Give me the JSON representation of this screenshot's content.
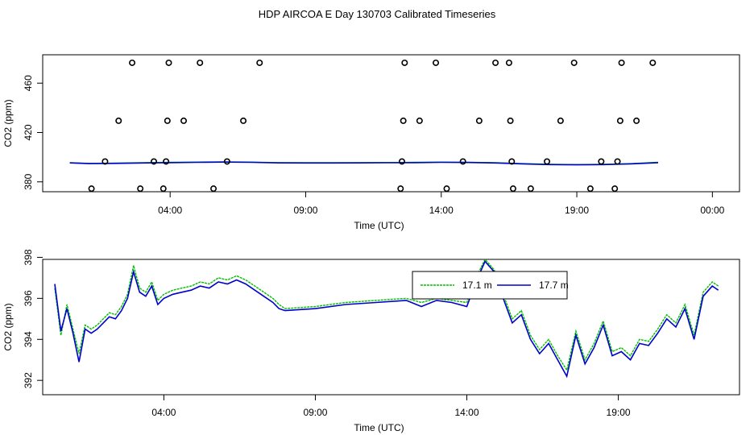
{
  "page": {
    "title": "HDP AIRCOA E  Day 130703  Calibrated Timeseries"
  },
  "colors": {
    "green": "#00c000",
    "blue": "#0000cc",
    "axis": "#000000"
  },
  "chart_data": [
    {
      "type": "scatter",
      "title": "",
      "xlabel": "Time (UTC)",
      "ylabel": "CO2 (ppm)",
      "xlim": [
        -0.7,
        25.0
      ],
      "ylim": [
        372,
        483
      ],
      "x_ticks": [
        {
          "value": 4,
          "label": "04:00"
        },
        {
          "value": 9,
          "label": "09:00"
        },
        {
          "value": 14,
          "label": "14:00"
        },
        {
          "value": 19,
          "label": "19:00"
        },
        {
          "value": 24,
          "label": "00:00"
        }
      ],
      "y_ticks": [
        {
          "value": 380,
          "label": "380"
        },
        {
          "value": 420,
          "label": "420"
        },
        {
          "value": 460,
          "label": "460"
        }
      ],
      "grid": false,
      "scatter_points": [
        [
          1.1,
          374.5
        ],
        [
          1.6,
          396.5
        ],
        [
          2.1,
          429.5
        ],
        [
          2.6,
          476.5
        ],
        [
          2.9,
          374.5
        ],
        [
          3.4,
          396.5
        ],
        [
          3.75,
          374.5
        ],
        [
          3.85,
          396.5
        ],
        [
          3.9,
          429.5
        ],
        [
          3.95,
          476.5
        ],
        [
          4.5,
          429.5
        ],
        [
          5.1,
          476.5
        ],
        [
          5.6,
          374.5
        ],
        [
          6.1,
          396.5
        ],
        [
          6.7,
          429.5
        ],
        [
          7.3,
          476.5
        ],
        [
          12.5,
          374.5
        ],
        [
          12.55,
          396.5
        ],
        [
          12.6,
          429.5
        ],
        [
          12.65,
          476.5
        ],
        [
          13.2,
          429.5
        ],
        [
          13.8,
          476.5
        ],
        [
          14.2,
          374.5
        ],
        [
          14.8,
          396.5
        ],
        [
          15.4,
          429.5
        ],
        [
          16.0,
          476.5
        ],
        [
          16.5,
          476.5
        ],
        [
          16.55,
          429.5
        ],
        [
          16.6,
          396.5
        ],
        [
          16.65,
          374.5
        ],
        [
          17.3,
          374.5
        ],
        [
          17.9,
          396.5
        ],
        [
          18.4,
          429.5
        ],
        [
          18.9,
          476.5
        ],
        [
          19.5,
          374.5
        ],
        [
          19.9,
          396.5
        ],
        [
          20.4,
          374.5
        ],
        [
          20.5,
          396.5
        ],
        [
          20.6,
          429.5
        ],
        [
          20.65,
          476.5
        ],
        [
          21.2,
          429.5
        ],
        [
          21.8,
          476.5
        ]
      ],
      "series": [
        {
          "name": "17.1 m",
          "color": "#00c000",
          "x": [
            0.3,
            1.0,
            2.0,
            3.0,
            4.0,
            5.0,
            6.0,
            7.0,
            8.0,
            9.0,
            10.0,
            11.0,
            12.0,
            13.0,
            14.0,
            15.0,
            16.0,
            17.0,
            18.0,
            19.0,
            20.0,
            21.0,
            22.0
          ],
          "y": [
            395.6,
            395.0,
            395.2,
            395.5,
            395.8,
            396.0,
            396.2,
            396.0,
            395.6,
            395.5,
            395.5,
            395.6,
            395.7,
            395.8,
            396.0,
            395.9,
            395.5,
            394.8,
            394.2,
            394.0,
            394.2,
            394.8,
            395.8
          ]
        },
        {
          "name": "17.7 m",
          "color": "#0000cc",
          "x": [
            0.3,
            1.0,
            2.0,
            3.0,
            4.0,
            5.0,
            6.0,
            7.0,
            8.0,
            9.0,
            10.0,
            11.0,
            12.0,
            13.0,
            14.0,
            15.0,
            16.0,
            17.0,
            18.0,
            19.0,
            20.0,
            21.0,
            22.0
          ],
          "y": [
            395.4,
            394.8,
            395.0,
            395.3,
            395.6,
            395.8,
            396.0,
            395.8,
            395.4,
            395.3,
            395.3,
            395.4,
            395.5,
            395.6,
            395.8,
            395.7,
            395.3,
            394.6,
            394.0,
            393.8,
            394.0,
            394.6,
            395.6
          ]
        }
      ]
    },
    {
      "type": "line",
      "title": "",
      "xlabel": "Time (UTC)",
      "ylabel": "CO2 (ppm)",
      "xlim": [
        0.0,
        23.0
      ],
      "ylim": [
        391.3,
        397.9
      ],
      "x_ticks": [
        {
          "value": 4,
          "label": "04:00"
        },
        {
          "value": 9,
          "label": "09:00"
        },
        {
          "value": 14,
          "label": "14:00"
        },
        {
          "value": 19,
          "label": "19:00"
        }
      ],
      "y_ticks": [
        {
          "value": 392,
          "label": "392"
        },
        {
          "value": 394,
          "label": "394"
        },
        {
          "value": 396,
          "label": "396"
        },
        {
          "value": 398,
          "label": "398"
        }
      ],
      "grid": false,
      "legend": {
        "placement": "top-center-right"
      },
      "series": [
        {
          "name": "17.1 m",
          "color": "#00c000",
          "x": [
            0.4,
            0.6,
            0.8,
            1.0,
            1.2,
            1.4,
            1.6,
            1.8,
            2.0,
            2.2,
            2.4,
            2.6,
            2.8,
            3.0,
            3.2,
            3.4,
            3.6,
            3.8,
            4.0,
            4.3,
            4.6,
            4.9,
            5.2,
            5.5,
            5.8,
            6.1,
            6.4,
            6.7,
            7.0,
            7.3,
            7.6,
            7.8,
            8.0,
            9.0,
            10.0,
            11.0,
            12.0,
            12.5,
            13.0,
            13.5,
            14.0,
            14.3,
            14.6,
            14.9,
            15.2,
            15.5,
            15.8,
            16.1,
            16.4,
            16.7,
            17.0,
            17.3,
            17.6,
            17.9,
            18.2,
            18.5,
            18.8,
            19.1,
            19.4,
            19.7,
            20.0,
            20.3,
            20.6,
            20.9,
            21.2,
            21.5,
            21.8,
            22.1,
            22.3
          ],
          "y": [
            396.5,
            394.2,
            395.7,
            394.5,
            393.3,
            394.7,
            394.5,
            394.7,
            395.0,
            395.3,
            395.2,
            395.6,
            396.2,
            397.6,
            396.5,
            396.3,
            396.8,
            395.9,
            396.2,
            396.4,
            396.5,
            396.6,
            396.8,
            396.7,
            397.0,
            396.9,
            397.1,
            396.9,
            396.6,
            396.3,
            396.0,
            395.7,
            395.5,
            395.6,
            395.8,
            395.9,
            396.0,
            395.8,
            396.0,
            395.9,
            395.8,
            397.0,
            397.9,
            397.4,
            396.2,
            395.0,
            395.4,
            394.2,
            393.5,
            394.0,
            393.2,
            392.5,
            394.4,
            393.0,
            393.8,
            394.9,
            393.4,
            393.6,
            393.2,
            394.0,
            393.9,
            394.5,
            395.2,
            394.8,
            395.7,
            394.2,
            396.3,
            396.8,
            396.6
          ]
        },
        {
          "name": "17.7 m",
          "color": "#0000cc",
          "x": [
            0.4,
            0.6,
            0.8,
            1.0,
            1.2,
            1.4,
            1.6,
            1.8,
            2.0,
            2.2,
            2.4,
            2.6,
            2.8,
            3.0,
            3.2,
            3.4,
            3.6,
            3.8,
            4.0,
            4.3,
            4.6,
            4.9,
            5.2,
            5.5,
            5.8,
            6.1,
            6.4,
            6.7,
            7.0,
            7.3,
            7.6,
            7.8,
            8.0,
            9.0,
            10.0,
            11.0,
            12.0,
            12.5,
            13.0,
            13.5,
            14.0,
            14.3,
            14.6,
            14.9,
            15.2,
            15.5,
            15.8,
            16.1,
            16.4,
            16.7,
            17.0,
            17.3,
            17.6,
            17.9,
            18.2,
            18.5,
            18.8,
            19.1,
            19.4,
            19.7,
            20.0,
            20.3,
            20.6,
            20.9,
            21.2,
            21.5,
            21.8,
            22.1,
            22.3
          ],
          "y": [
            396.7,
            394.4,
            395.5,
            394.3,
            392.9,
            394.5,
            394.3,
            394.5,
            394.8,
            395.1,
            395.0,
            395.4,
            396.0,
            397.3,
            396.3,
            396.1,
            396.6,
            395.7,
            396.0,
            396.2,
            396.3,
            396.4,
            396.6,
            396.5,
            396.8,
            396.7,
            396.9,
            396.7,
            396.4,
            396.1,
            395.8,
            395.5,
            395.4,
            395.5,
            395.7,
            395.8,
            395.9,
            395.6,
            395.9,
            395.8,
            395.6,
            396.8,
            397.8,
            397.3,
            396.0,
            394.8,
            395.2,
            394.0,
            393.3,
            393.8,
            393.0,
            392.2,
            394.2,
            392.8,
            393.6,
            394.7,
            393.2,
            393.4,
            393.0,
            393.8,
            393.7,
            394.3,
            395.0,
            394.6,
            395.5,
            394.0,
            396.1,
            396.6,
            396.4
          ]
        }
      ]
    }
  ]
}
